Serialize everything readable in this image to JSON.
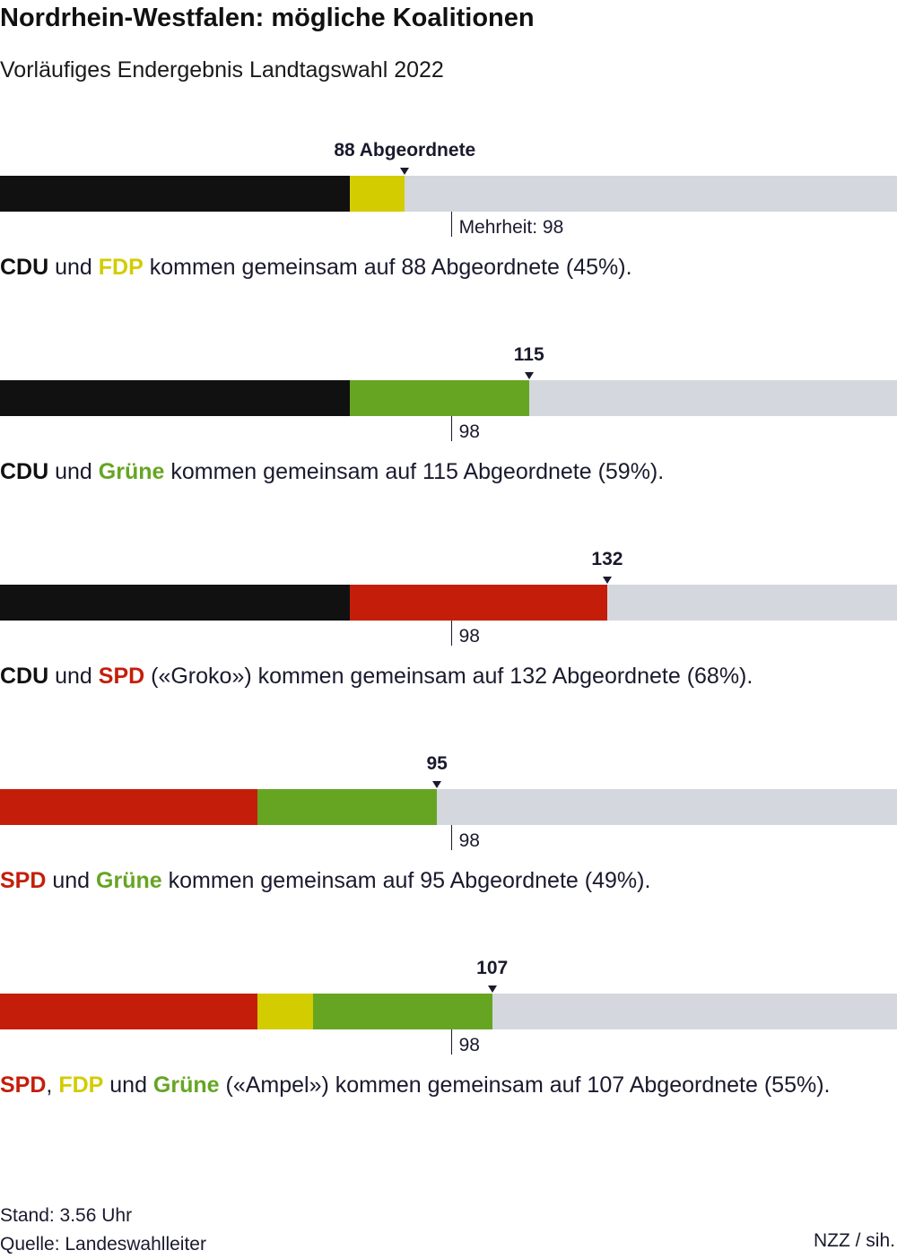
{
  "title": "Nordrhein-Westfalen: mögliche Koalitionen",
  "subtitle": "Vorläufiges Endergebnis Landtagswahl 2022",
  "colors": {
    "CDU": "#111111",
    "FDP": "#d2cc00",
    "Grüne": "#66a522",
    "SPD": "#c41e0a",
    "track": "#d4d7de"
  },
  "chart_data": {
    "type": "bar",
    "orientation": "horizontal-stacked",
    "total_seats": 195,
    "majority": 98,
    "majority_label_first": "Mehrheit: 98",
    "majority_label": "98",
    "coalitions": [
      {
        "segments": [
          {
            "party": "CDU",
            "seats": 76
          },
          {
            "party": "FDP",
            "seats": 12
          }
        ],
        "total": 88,
        "total_label": "88 Abgeordnete",
        "sentence_parts": [
          {
            "text": "CDU",
            "party": "CDU"
          },
          {
            "text": " und "
          },
          {
            "text": "FDP",
            "party": "FDP"
          },
          {
            "text": " kommen gemeinsam auf 88 Abgeordnete (45%)."
          }
        ]
      },
      {
        "segments": [
          {
            "party": "CDU",
            "seats": 76
          },
          {
            "party": "Grüne",
            "seats": 39
          }
        ],
        "total": 115,
        "total_label": "115",
        "sentence_parts": [
          {
            "text": "CDU",
            "party": "CDU"
          },
          {
            "text": " und "
          },
          {
            "text": "Grüne",
            "party": "Grüne"
          },
          {
            "text": " kommen gemeinsam auf 115 Abgeordnete (59%)."
          }
        ]
      },
      {
        "segments": [
          {
            "party": "CDU",
            "seats": 76
          },
          {
            "party": "SPD",
            "seats": 56
          }
        ],
        "total": 132,
        "total_label": "132",
        "sentence_parts": [
          {
            "text": "CDU",
            "party": "CDU"
          },
          {
            "text": " und "
          },
          {
            "text": "SPD",
            "party": "SPD"
          },
          {
            "text": " («Groko») kommen gemeinsam auf 132 Abgeordnete (68%)."
          }
        ]
      },
      {
        "segments": [
          {
            "party": "SPD",
            "seats": 56
          },
          {
            "party": "Grüne",
            "seats": 39
          }
        ],
        "total": 95,
        "total_label": "95",
        "sentence_parts": [
          {
            "text": "SPD",
            "party": "SPD"
          },
          {
            "text": " und "
          },
          {
            "text": "Grüne",
            "party": "Grüne"
          },
          {
            "text": " kommen gemeinsam auf 95 Abgeordnete (49%)."
          }
        ]
      },
      {
        "segments": [
          {
            "party": "SPD",
            "seats": 56
          },
          {
            "party": "FDP",
            "seats": 12
          },
          {
            "party": "Grüne",
            "seats": 39
          }
        ],
        "total": 107,
        "total_label": "107",
        "sentence_parts": [
          {
            "text": "SPD",
            "party": "SPD"
          },
          {
            "text": ", "
          },
          {
            "text": "FDP",
            "party": "FDP"
          },
          {
            "text": " und "
          },
          {
            "text": "Grüne",
            "party": "Grüne"
          },
          {
            "text": " («Ampel») kommen gemeinsam auf 107 Abgeordnete (55%)."
          }
        ]
      }
    ]
  },
  "footer": {
    "stand": "Stand: 3.56 Uhr",
    "quelle": "Quelle: Landeswahlleiter",
    "credit": "NZZ / sih."
  }
}
